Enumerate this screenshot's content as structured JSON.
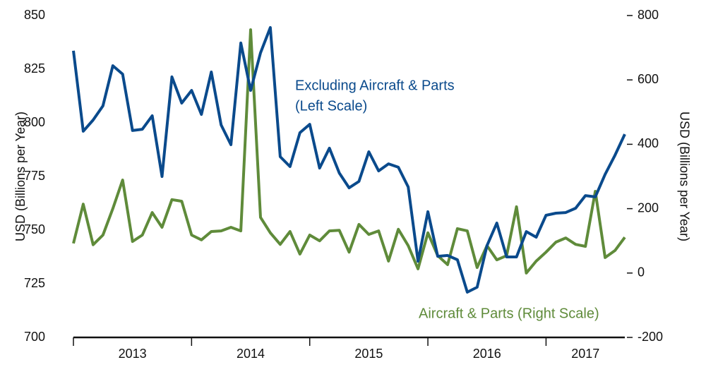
{
  "chart_data": {
    "type": "line",
    "categories": [
      null,
      null,
      null,
      null,
      null,
      null,
      "2013",
      null,
      null,
      null,
      null,
      null,
      null,
      null,
      null,
      null,
      null,
      null,
      "2014",
      null,
      null,
      null,
      null,
      null,
      null,
      null,
      null,
      null,
      null,
      null,
      "2015",
      null,
      null,
      null,
      null,
      null,
      null,
      null,
      null,
      null,
      null,
      null,
      "2016",
      null,
      null,
      null,
      null,
      null,
      null,
      null,
      null,
      null,
      "2017",
      null,
      null,
      null,
      null
    ],
    "ylabel": "USD (Billions per Year)",
    "y2label": "USD (Billions per Year)",
    "ylim": [
      700,
      850
    ],
    "yticks": [
      700,
      725,
      750,
      775,
      800,
      825,
      850
    ],
    "y2lim": [
      -200,
      800
    ],
    "y2ticks": [
      -200,
      0,
      200,
      400,
      600,
      800
    ],
    "grid": false,
    "series": [
      {
        "name": "Excluding Aircraft & Parts",
        "color": "#0a4a8c",
        "values": [
          833.6,
          796.1,
          801.3,
          807.9,
          826.6,
          822.7,
          796.4,
          797.0,
          803.3,
          775.0,
          821.4,
          809.2,
          815.1,
          803.9,
          823.7,
          799.0,
          789.8,
          837.2,
          815.1,
          832.6,
          844.4,
          784.2,
          779.6,
          795.4,
          799.3,
          778.9,
          788.2,
          776.6,
          769.7,
          772.7,
          786.5,
          777.6,
          780.9,
          779.3,
          770.1,
          735.5,
          758.6,
          737.8,
          738.2,
          736.2,
          721.1,
          723.4,
          742.8,
          753.3,
          737.5,
          737.5,
          749.3,
          746.7,
          756.9,
          757.9,
          758.2,
          760.2,
          766.1,
          765.5,
          776.0,
          784.9,
          794.7
        ]
      },
      {
        "name": "Aircraft & Parts (Right Scale)",
        "color": "#5f8b3a",
        "axis": "y2",
        "values": [
          92,
          214,
          88,
          118,
          200,
          289,
          98,
          118,
          188,
          142,
          228,
          223,
          118,
          103,
          129,
          131,
          142,
          131,
          756,
          173,
          125,
          89,
          129,
          59,
          118,
          100,
          131,
          133,
          65,
          151,
          120,
          131,
          37,
          136,
          85,
          13,
          125,
          54,
          26,
          138,
          131,
          17,
          85,
          41,
          54,
          206,
          0,
          37,
          65,
          96,
          109,
          89,
          83,
          254,
          48,
          70,
          111
        ]
      }
    ],
    "annotations": [
      "(Left Scale)"
    ]
  }
}
